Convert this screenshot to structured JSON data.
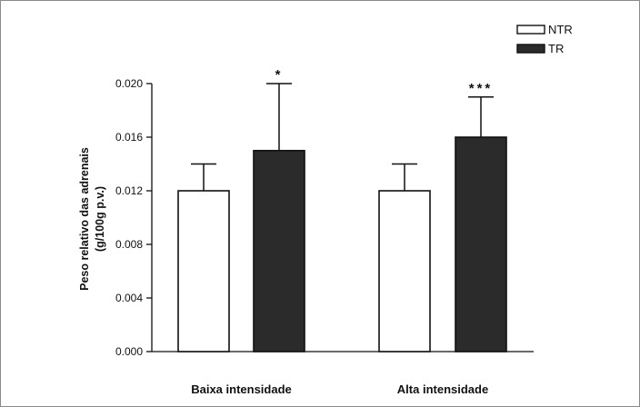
{
  "chart_data": {
    "type": "bar",
    "categories": [
      "Baixa intensidade",
      "Alta intensidade"
    ],
    "series": [
      {
        "name": "NTR",
        "values": [
          0.012,
          0.012
        ],
        "errors": [
          0.002,
          0.002
        ],
        "color": "#ffffff"
      },
      {
        "name": "TR",
        "values": [
          0.015,
          0.016
        ],
        "errors": [
          0.005,
          0.003
        ],
        "color": "#2b2b2b"
      }
    ],
    "significance": {
      "TR": [
        "*",
        "***"
      ]
    },
    "ylabel_lines": [
      "Peso relativo das adrenais",
      "(g/100g p.v.)"
    ],
    "yticks": [
      "0.000",
      "0.004",
      "0.008",
      "0.012",
      "0.016",
      "0.020"
    ],
    "ylim": [
      0,
      0.02
    ],
    "legend_position": "top-right",
    "grid": false
  }
}
